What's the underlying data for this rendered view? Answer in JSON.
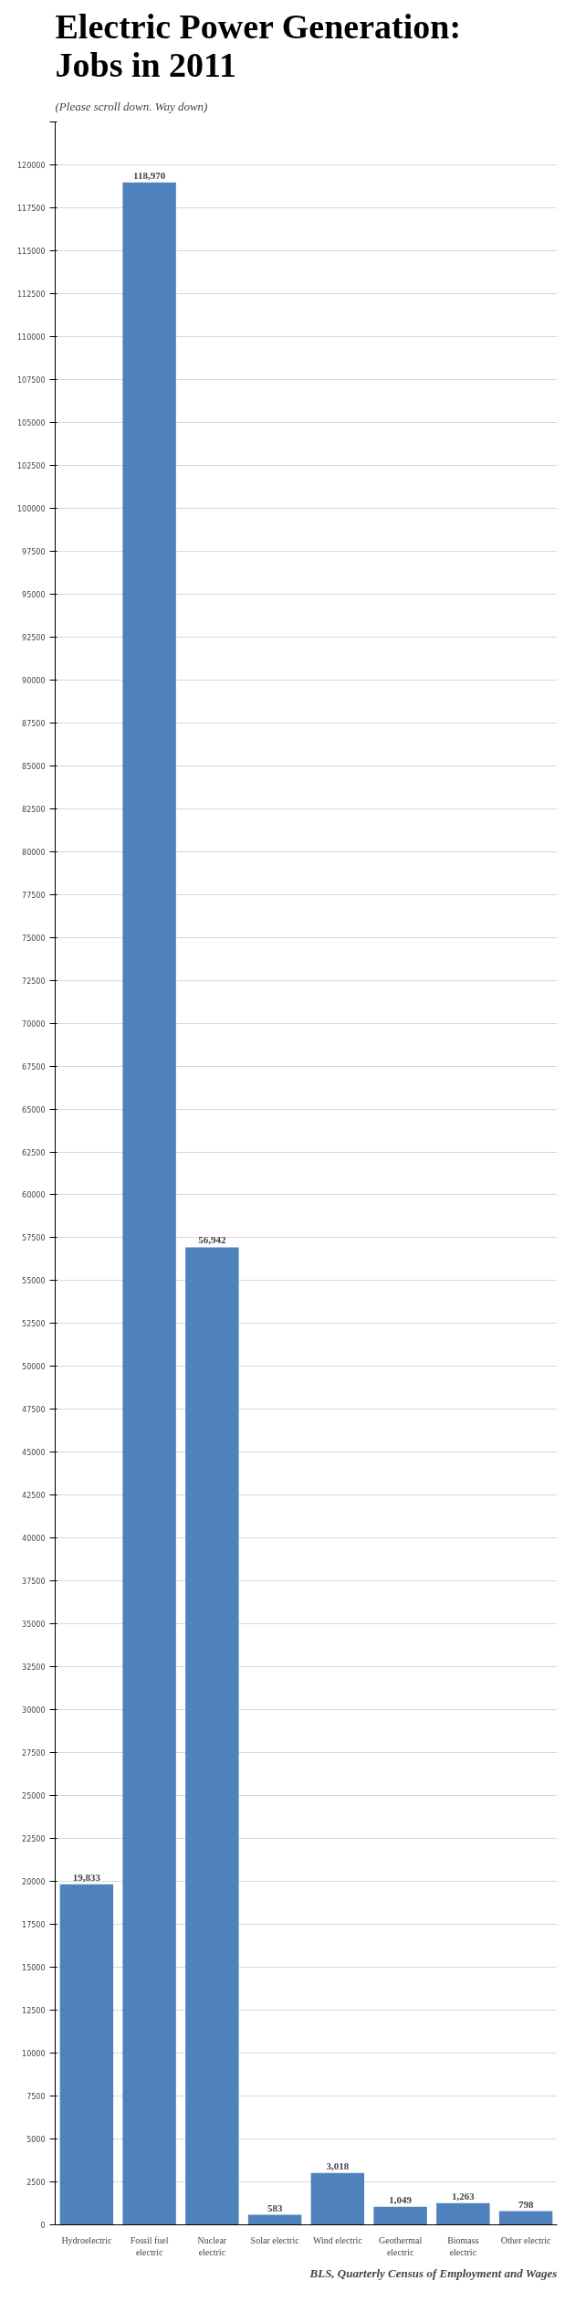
{
  "chart_data": {
    "type": "bar",
    "title": "Electric Power Generation:\nJobs in 2011",
    "subtitle": "(Please scroll down. Way down)",
    "categories": [
      "Hydroelectric",
      "Fossil fuel electric",
      "Nuclear electric",
      "Solar electric",
      "Wind electric",
      "Geothermal electric",
      "Biomass electric",
      "Other electric"
    ],
    "values": [
      19833,
      118970,
      56942,
      583,
      3018,
      1049,
      1263,
      798
    ],
    "value_labels": [
      "19,833",
      "118,970",
      "56,942",
      "583",
      "3,018",
      "1,049",
      "1,263",
      "798"
    ],
    "color": "#4f81bd",
    "grid": "y",
    "ylim": [
      0,
      122500
    ],
    "yticks": [
      0,
      2500,
      5000,
      7500,
      10000,
      12500,
      15000,
      17500,
      20000,
      22500,
      25000,
      27500,
      30000,
      32500,
      35000,
      37500,
      40000,
      42500,
      45000,
      47500,
      50000,
      52500,
      55000,
      57500,
      60000,
      62500,
      65000,
      67500,
      70000,
      72500,
      75000,
      77500,
      80000,
      82500,
      85000,
      87500,
      90000,
      92500,
      95000,
      97500,
      100000,
      102500,
      105000,
      107500,
      110000,
      112500,
      115000,
      117500,
      120000,
      {
        "value": 122500,
        "label": null
      }
    ],
    "annotations": [
      "BLS, Quarterly Census of Employment and Wages"
    ]
  }
}
